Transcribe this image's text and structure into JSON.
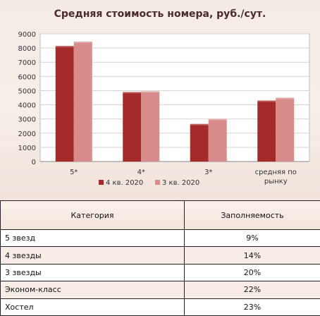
{
  "chart_data": {
    "type": "bar",
    "title": "Средняя стоимость номера, руб./сут.",
    "categories": [
      "5*",
      "4*",
      "3*",
      "средняя по рынку"
    ],
    "category_lines": [
      [
        "5*"
      ],
      [
        "4*"
      ],
      [
        "3*"
      ],
      [
        "средняя по",
        "рынку"
      ]
    ],
    "series": [
      {
        "name": "4 кв. 2020",
        "values": [
          8150,
          4900,
          2650,
          4300
        ],
        "color": "#a52a2a"
      },
      {
        "name": "3 кв. 2020",
        "values": [
          8450,
          4950,
          3000,
          4500
        ],
        "color": "#d98c8c"
      }
    ],
    "ylim": [
      0,
      9000
    ],
    "yticks": [
      0,
      1000,
      2000,
      3000,
      4000,
      5000,
      6000,
      7000,
      8000,
      9000
    ],
    "grid": true,
    "legend": "bottom"
  },
  "table": {
    "headers": [
      "Категория",
      "Заполняемость"
    ],
    "rows": [
      [
        "5 звезд",
        "9%"
      ],
      [
        "4 звезды",
        "14%"
      ],
      [
        "3 звезды",
        "20%"
      ],
      [
        "Эконом-класс",
        "22%"
      ],
      [
        "Хостел",
        "23%"
      ]
    ]
  }
}
